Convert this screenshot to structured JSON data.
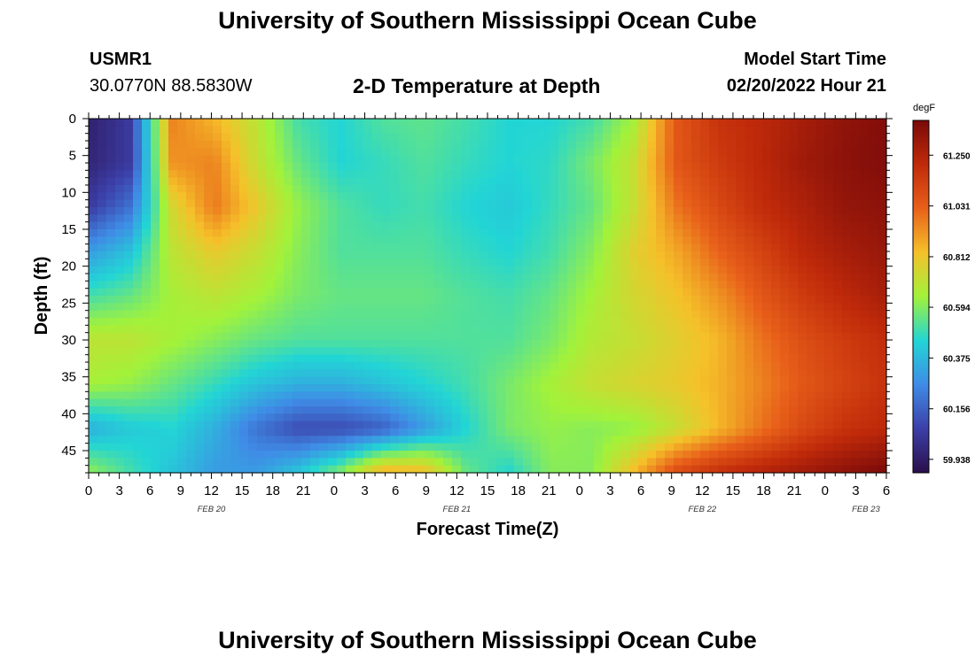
{
  "header": {
    "title": "University of Southern Mississippi Ocean Cube",
    "station_id": "USMR1",
    "coords": "30.0770N  88.5830W",
    "chart_title": "2-D Temperature at Depth",
    "model_label": "Model Start Time",
    "model_value": "02/20/2022 Hour 21",
    "bottom_title": "University of Southern Mississippi Ocean Cube"
  },
  "chart_data": {
    "type": "heatmap",
    "title": "2-D Temperature at Depth",
    "xlabel": "Forecast Time(Z)",
    "ylabel": "Depth (ft)",
    "x_ticks": [
      "0",
      "3",
      "6",
      "9",
      "12",
      "15",
      "18",
      "21",
      "0",
      "3",
      "6",
      "9",
      "12",
      "15",
      "18",
      "21",
      "0",
      "3",
      "6",
      "9",
      "12",
      "15",
      "18",
      "21",
      "0",
      "3",
      "6"
    ],
    "x_date_labels": [
      "FEB 20",
      "FEB 21",
      "FEB 22",
      "FEB 23"
    ],
    "y_ticks": [
      "0",
      "5",
      "10",
      "15",
      "20",
      "25",
      "30",
      "35",
      "40",
      "45"
    ],
    "x_range_hours": [
      0,
      78
    ],
    "y_range_ft": [
      0,
      48
    ],
    "y_inverted": true,
    "colorbar": {
      "unit": "degF",
      "ticks": [
        "61.250",
        "61.031",
        "60.812",
        "60.594",
        "60.375",
        "60.156",
        "59.938"
      ],
      "range": [
        59.88,
        61.4
      ],
      "colors": [
        "#2a0f4a",
        "#3c3fa8",
        "#3f8ce6",
        "#22d5d5",
        "#a2f23a",
        "#f5c12a",
        "#e8601a",
        "#c02a0a",
        "#7a0a0a"
      ]
    },
    "grid": [
      [
        59.95,
        60.05,
        60.95,
        60.85,
        60.7,
        60.5,
        60.45,
        60.52,
        60.54,
        60.5,
        60.45,
        60.45,
        60.5,
        60.65,
        61.05,
        61.18,
        61.22,
        61.28,
        61.34,
        61.38
      ],
      [
        59.97,
        60.05,
        60.92,
        60.95,
        60.72,
        60.55,
        60.45,
        60.48,
        60.52,
        60.48,
        60.45,
        60.47,
        60.58,
        60.72,
        61.05,
        61.15,
        61.22,
        61.3,
        61.35,
        61.38
      ],
      [
        60.05,
        60.2,
        60.75,
        60.97,
        60.8,
        60.62,
        60.52,
        60.48,
        60.5,
        60.45,
        60.42,
        60.48,
        60.55,
        60.72,
        60.98,
        61.1,
        61.2,
        61.26,
        61.33,
        61.35
      ],
      [
        60.3,
        60.4,
        60.7,
        60.8,
        60.72,
        60.6,
        60.52,
        60.52,
        60.52,
        60.48,
        60.45,
        60.5,
        60.6,
        60.78,
        60.88,
        61.02,
        61.12,
        61.22,
        61.28,
        61.32
      ],
      [
        60.5,
        60.55,
        60.65,
        60.7,
        60.65,
        60.58,
        60.55,
        60.55,
        60.55,
        60.52,
        60.5,
        60.55,
        60.65,
        60.75,
        60.82,
        60.92,
        61.05,
        61.15,
        61.22,
        61.28
      ],
      [
        60.7,
        60.7,
        60.65,
        60.6,
        60.55,
        60.52,
        60.52,
        60.52,
        60.52,
        60.52,
        60.52,
        60.58,
        60.68,
        60.72,
        60.78,
        60.85,
        60.98,
        61.08,
        61.15,
        61.2
      ],
      [
        60.65,
        60.62,
        60.55,
        60.48,
        60.4,
        60.35,
        60.35,
        60.4,
        60.45,
        60.5,
        60.58,
        60.65,
        60.72,
        60.76,
        60.8,
        60.86,
        60.95,
        61.05,
        61.12,
        61.18
      ],
      [
        60.35,
        60.42,
        60.45,
        60.35,
        60.2,
        60.1,
        60.1,
        60.15,
        60.3,
        60.45,
        60.58,
        60.62,
        60.6,
        60.62,
        60.72,
        60.85,
        60.98,
        61.1,
        61.18,
        61.22
      ],
      [
        60.62,
        60.5,
        60.4,
        60.3,
        60.3,
        60.42,
        60.6,
        60.88,
        60.85,
        60.55,
        60.45,
        60.6,
        60.6,
        60.85,
        61.1,
        61.2,
        61.25,
        61.3,
        61.35,
        61.4
      ]
    ]
  }
}
